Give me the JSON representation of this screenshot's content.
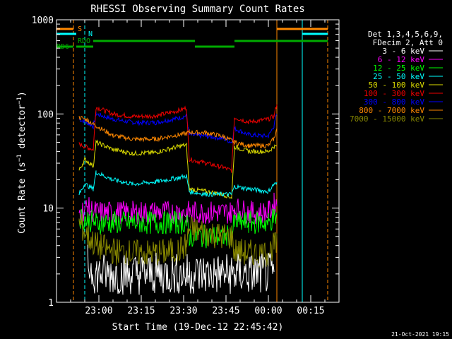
{
  "chart_data": {
    "type": "line",
    "title": "RHESSI Observing Summary Count Rates",
    "xlabel": "Start Time (19-Dec-12 22:45:42)",
    "ylabel": "Count Rate (s⁻¹ detector⁻¹)",
    "ylabel_parts": {
      "pre": "Count Rate (s",
      "exp1": "−1",
      "mid": " detector",
      "exp2": "−1",
      "post": ")"
    },
    "yscale": "log",
    "ylim": [
      1,
      1000
    ],
    "xlim": [
      "22:45:42",
      "00:25:00"
    ],
    "x_ticks": [
      "23:00",
      "23:15",
      "23:30",
      "23:45",
      "00:00",
      "00:15"
    ],
    "y_ticks": [
      "1",
      "10",
      "100",
      "1000"
    ],
    "legend": {
      "header": [
        "Det 1,3,4,5,6,9,",
        "FDecim 2, Att 0"
      ],
      "entries": [
        {
          "label": "3 - 6 keV",
          "color": "#ffffff"
        },
        {
          "label": "6 - 12 keV",
          "color": "#ff00ff"
        },
        {
          "label": "12 - 25 keV",
          "color": "#00ff00"
        },
        {
          "label": "25 - 50 keV",
          "color": "#00ffff"
        },
        {
          "label": "50 - 100 keV",
          "color": "#dddd00"
        },
        {
          "label": "100 - 300 keV",
          "color": "#ee0000"
        },
        {
          "label": "300 - 800 keV",
          "color": "#0000ff"
        },
        {
          "label": "800 - 7000 keV",
          "color": "#ff8800"
        },
        {
          "label": "7000 - 15000 keV",
          "color": "#888800"
        }
      ],
      "placement": "right"
    },
    "flag_bars": [
      {
        "label": "S",
        "color": "#ff8800",
        "segments": [
          [
            "22:45",
            "22:51"
          ],
          [
            "00:03",
            "00:22"
          ]
        ]
      },
      {
        "label": "N",
        "color": "#00ffff",
        "segments": [
          [
            "22:45",
            "22:52"
          ],
          [
            "00:12",
            "00:22"
          ]
        ]
      },
      {
        "label": "RDO",
        "color": "#00aa00",
        "segments": [
          [
            "22:58",
            "23:34"
          ],
          [
            "23:48",
            "00:22"
          ]
        ]
      },
      {
        "label": "RD6",
        "color": "#00aa00",
        "segments": [
          [
            "22:45",
            "22:51"
          ],
          [
            "22:52",
            "22:58"
          ],
          [
            "23:34",
            "23:48"
          ]
        ]
      }
    ],
    "vlines": [
      {
        "time": "22:51",
        "color": "#ff8800",
        "style": "dashed"
      },
      {
        "time": "22:55",
        "color": "#00ffff",
        "style": "dashed"
      },
      {
        "time": "00:03",
        "color": "#ff8800",
        "style": "solid"
      },
      {
        "time": "00:12",
        "color": "#00ffff",
        "style": "solid"
      },
      {
        "time": "00:21",
        "color": "#ff8800",
        "style": "dashed"
      }
    ],
    "series": [
      {
        "name": "300 - 800 keV",
        "color": "#0000ff",
        "points": [
          [
            "22:53",
            88
          ],
          [
            "22:56",
            80
          ],
          [
            "22:58",
            74
          ],
          [
            "22:59",
            100
          ],
          [
            "23:05",
            88
          ],
          [
            "23:12",
            81
          ],
          [
            "23:20",
            81
          ],
          [
            "23:28",
            90
          ],
          [
            "23:31",
            96
          ],
          [
            "23:32",
            60
          ],
          [
            "23:38",
            58
          ],
          [
            "23:44",
            55
          ],
          [
            "23:47",
            50
          ],
          [
            "23:48",
            70
          ],
          [
            "23:53",
            60
          ],
          [
            "00:00",
            58
          ],
          [
            "00:02",
            75
          ],
          [
            "00:03",
            100
          ]
        ]
      },
      {
        "name": "100 - 300 keV",
        "color": "#ee0000",
        "points": [
          [
            "22:53",
            48
          ],
          [
            "22:56",
            44
          ],
          [
            "22:58",
            42
          ],
          [
            "22:59",
            118
          ],
          [
            "23:05",
            100
          ],
          [
            "23:12",
            94
          ],
          [
            "23:20",
            95
          ],
          [
            "23:28",
            108
          ],
          [
            "23:31",
            116
          ],
          [
            "23:32",
            33
          ],
          [
            "23:38",
            30
          ],
          [
            "23:44",
            27
          ],
          [
            "23:47",
            25
          ],
          [
            "23:48",
            92
          ],
          [
            "23:53",
            82
          ],
          [
            "00:00",
            88
          ],
          [
            "00:02",
            95
          ],
          [
            "00:03",
            130
          ]
        ]
      },
      {
        "name": "800 - 7000 keV",
        "color": "#ff8800",
        "points": [
          [
            "22:53",
            92
          ],
          [
            "22:56",
            86
          ],
          [
            "22:58",
            78
          ],
          [
            "22:59",
            75
          ],
          [
            "23:05",
            59
          ],
          [
            "23:12",
            54
          ],
          [
            "23:20",
            54
          ],
          [
            "23:28",
            60
          ],
          [
            "23:31",
            62
          ],
          [
            "23:32",
            64
          ],
          [
            "23:38",
            63
          ],
          [
            "23:44",
            58
          ],
          [
            "23:47",
            52
          ],
          [
            "23:48",
            50
          ],
          [
            "23:53",
            46
          ],
          [
            "00:00",
            46
          ],
          [
            "00:02",
            55
          ],
          [
            "00:03",
            70
          ]
        ]
      },
      {
        "name": "50 - 100 keV",
        "color": "#dddd00",
        "points": [
          [
            "22:53",
            25
          ],
          [
            "22:55",
            33
          ],
          [
            "22:58",
            28
          ],
          [
            "22:59",
            50
          ],
          [
            "23:05",
            42
          ],
          [
            "23:12",
            38
          ],
          [
            "23:20",
            39
          ],
          [
            "23:28",
            45
          ],
          [
            "23:31",
            47
          ],
          [
            "23:32",
            16
          ],
          [
            "23:38",
            15
          ],
          [
            "23:44",
            14
          ],
          [
            "23:47",
            13
          ],
          [
            "23:48",
            45
          ],
          [
            "23:53",
            40
          ],
          [
            "00:00",
            40
          ],
          [
            "00:02",
            45
          ],
          [
            "00:03",
            45
          ]
        ]
      },
      {
        "name": "25 - 50 keV",
        "color": "#00ffff",
        "points": [
          [
            "22:53",
            14
          ],
          [
            "22:55",
            18
          ],
          [
            "22:58",
            16
          ],
          [
            "22:59",
            24
          ],
          [
            "23:05",
            20
          ],
          [
            "23:12",
            18
          ],
          [
            "23:20",
            19
          ],
          [
            "23:28",
            21
          ],
          [
            "23:31",
            22
          ],
          [
            "23:32",
            15
          ],
          [
            "23:38",
            14
          ],
          [
            "23:44",
            14
          ],
          [
            "23:47",
            14
          ],
          [
            "23:48",
            17
          ],
          [
            "23:53",
            16
          ],
          [
            "00:00",
            15
          ],
          [
            "00:02",
            18
          ],
          [
            "00:03",
            18
          ]
        ]
      },
      {
        "name": "6 - 12 keV",
        "color": "#ff00ff",
        "points": [
          [
            "22:53",
            9
          ],
          [
            "22:56",
            10
          ],
          [
            "22:59",
            9
          ],
          [
            "23:05",
            9
          ],
          [
            "23:12",
            9
          ],
          [
            "23:20",
            9
          ],
          [
            "23:28",
            9
          ],
          [
            "23:31",
            9
          ],
          [
            "23:32",
            9
          ],
          [
            "23:38",
            9
          ],
          [
            "23:44",
            9
          ],
          [
            "23:47",
            9
          ],
          [
            "23:48",
            10
          ],
          [
            "23:53",
            9
          ],
          [
            "00:00",
            9
          ],
          [
            "00:02",
            11
          ],
          [
            "00:03",
            11
          ]
        ]
      },
      {
        "name": "12 - 25 keV",
        "color": "#00ff00",
        "points": [
          [
            "22:53",
            8
          ],
          [
            "22:56",
            7.5
          ],
          [
            "22:59",
            7
          ],
          [
            "23:05",
            7
          ],
          [
            "23:12",
            7
          ],
          [
            "23:20",
            7
          ],
          [
            "23:28",
            7
          ],
          [
            "23:31",
            7
          ],
          [
            "23:32",
            5
          ],
          [
            "23:38",
            5
          ],
          [
            "23:44",
            5
          ],
          [
            "23:47",
            5
          ],
          [
            "23:48",
            7
          ],
          [
            "23:53",
            7
          ],
          [
            "00:00",
            7
          ],
          [
            "00:02",
            8
          ],
          [
            "00:03",
            8
          ]
        ]
      },
      {
        "name": "7000 - 15000 keV",
        "color": "#888800",
        "points": [
          [
            "22:53",
            7
          ],
          [
            "22:56",
            5
          ],
          [
            "22:59",
            4
          ],
          [
            "23:05",
            3.5
          ],
          [
            "23:12",
            3.3
          ],
          [
            "23:20",
            3.3
          ],
          [
            "23:28",
            3.5
          ],
          [
            "23:31",
            4
          ],
          [
            "23:32",
            6
          ],
          [
            "23:38",
            5.5
          ],
          [
            "23:44",
            5
          ],
          [
            "23:47",
            5
          ],
          [
            "23:48",
            3.5
          ],
          [
            "23:53",
            3.3
          ],
          [
            "00:00",
            3.3
          ],
          [
            "00:02",
            4
          ],
          [
            "00:03",
            4
          ]
        ]
      },
      {
        "name": "3 - 6 keV",
        "color": "#ffffff",
        "points": [
          [
            "22:56",
            2.5
          ],
          [
            "22:59",
            2
          ],
          [
            "23:10",
            2
          ],
          [
            "23:20",
            2
          ],
          [
            "23:31",
            2
          ],
          [
            "23:32",
            2
          ],
          [
            "23:47",
            2
          ],
          [
            "23:48",
            2
          ],
          [
            "00:02",
            2
          ]
        ]
      }
    ]
  },
  "footer": {
    "date": "21-Oct-2021 19:15"
  },
  "colors": {
    "background": "#000000",
    "axes": "#ffffff"
  }
}
